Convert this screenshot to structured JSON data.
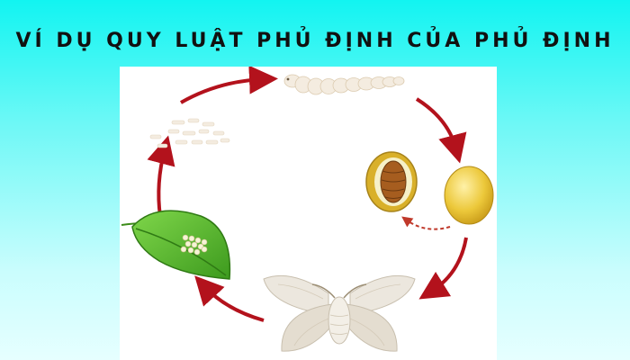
{
  "title": "VÍ DỤ QUY LUẬT PHỦ ĐỊNH CỦA PHỦ ĐỊNH",
  "colors": {
    "background_top": "#12f4f1",
    "background_bottom": "#e6ffff",
    "arrow": "#b3121c",
    "leaf": "#5cb82c",
    "cocoon": "#e8c531",
    "larva": "#f4ece0",
    "moth": "#ece7de"
  },
  "stages": [
    {
      "name": "eggs-on-leaf",
      "icon": "leaf-with-eggs-icon"
    },
    {
      "name": "hatchlings",
      "icon": "small-larvae-icon"
    },
    {
      "name": "silkworm",
      "icon": "silkworm-icon"
    },
    {
      "name": "pupa-in-cocoon",
      "icon": "open-cocoon-pupa-icon"
    },
    {
      "name": "cocoon",
      "icon": "cocoon-icon"
    },
    {
      "name": "moth",
      "icon": "silk-moth-icon"
    }
  ]
}
